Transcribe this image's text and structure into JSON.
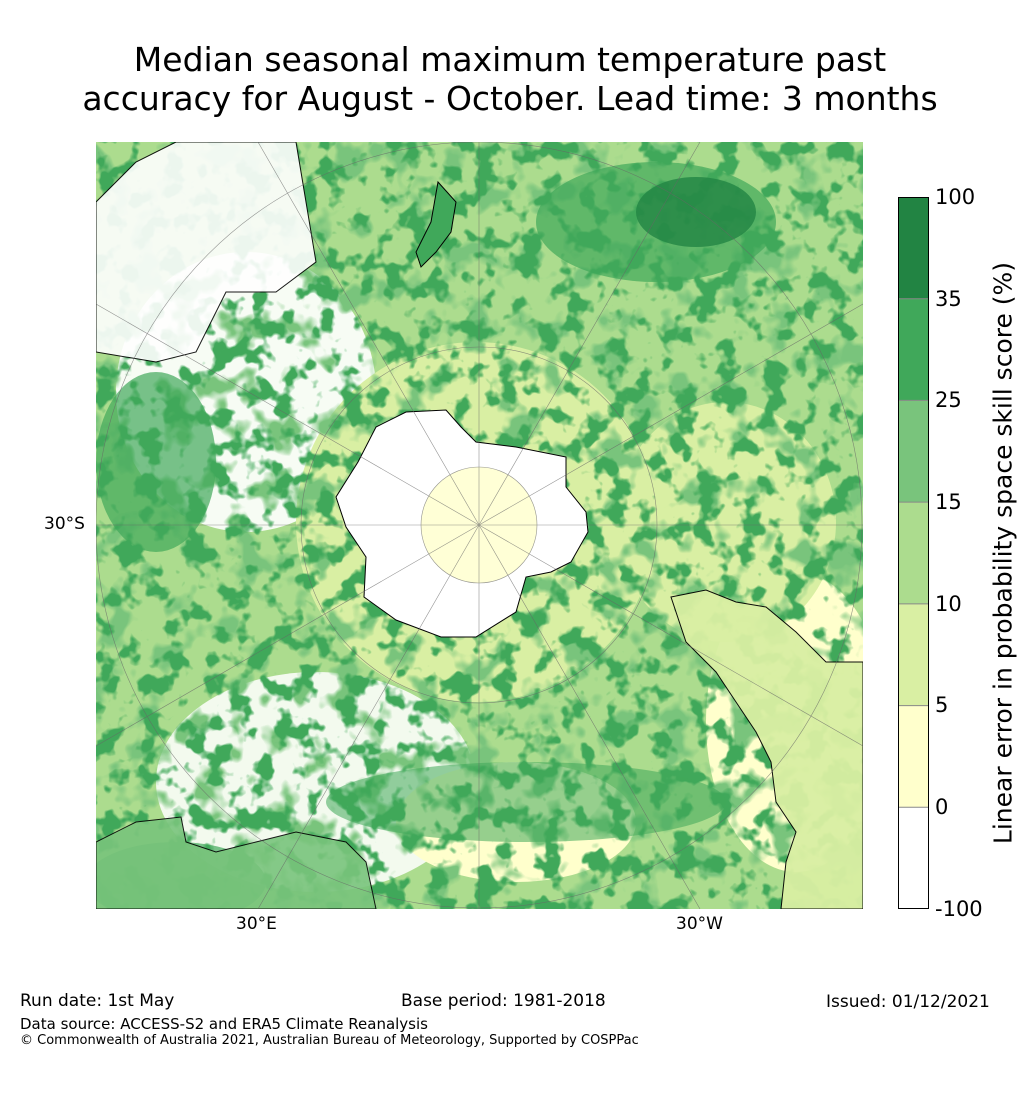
{
  "title_line1": "Median seasonal maximum temperature past",
  "title_line2": "accuracy for August - October. Lead time: 3 months",
  "map": {
    "projection": "south-polar-stereographic",
    "labels": {
      "lat": "30°S",
      "lon_east": "30°E",
      "lon_west": "30°W"
    }
  },
  "colorbar": {
    "label": "Linear error in probability space skill score (%)",
    "ticks": [
      "100",
      "35",
      "25",
      "15",
      "10",
      "5",
      "0",
      "-100"
    ],
    "bands": [
      {
        "range": "35 to 100",
        "color": "#228443"
      },
      {
        "range": "25 to 35",
        "color": "#40a85a"
      },
      {
        "range": "15 to 25",
        "color": "#79c47c"
      },
      {
        "range": "10 to 15",
        "color": "#acdc8e"
      },
      {
        "range": "5 to 10",
        "color": "#d9efa3"
      },
      {
        "range": "0 to 5",
        "color": "#ffffcc"
      },
      {
        "range": "-100 to 0",
        "color": "#ffffff"
      }
    ]
  },
  "footer": {
    "run_date": "Run date: 1st May",
    "base_period": "Base period: 1981-2018",
    "issued": "Issued: 01/12/2021",
    "data_source": "Data source: ACCESS-S2 and ERA5 Climate Reanalysis",
    "copyright": "© Commonwealth of Australia 2021, Australian Bureau of Meteorology, Supported by COSPPac"
  }
}
